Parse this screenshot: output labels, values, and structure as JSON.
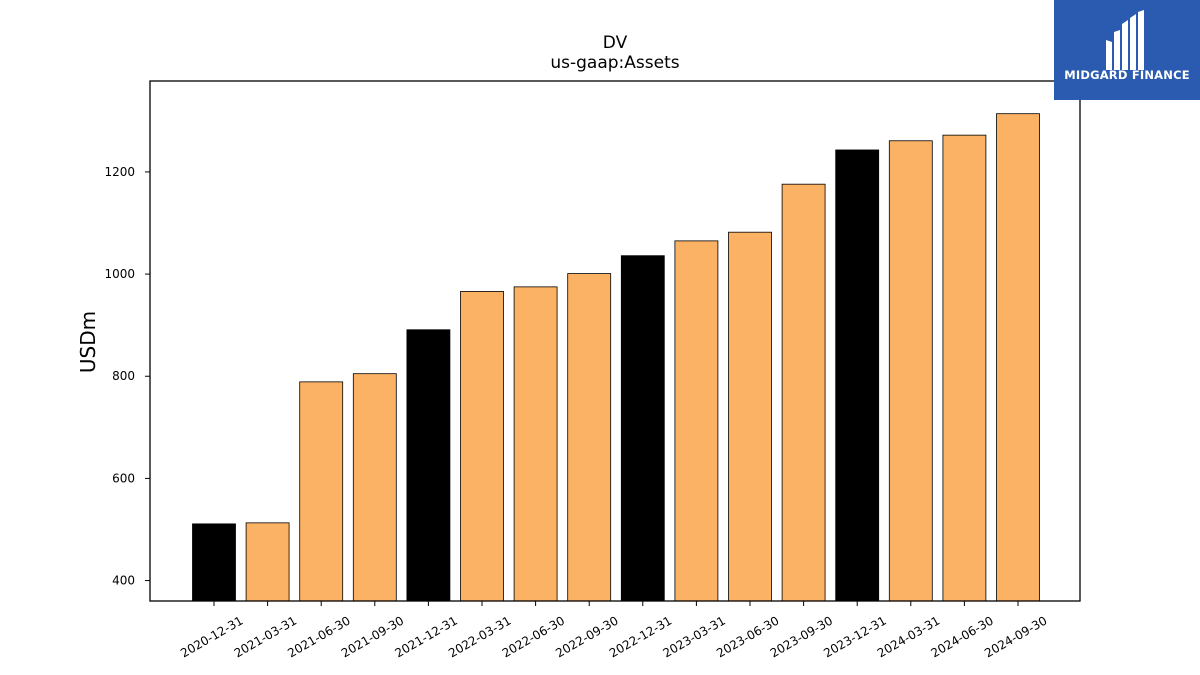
{
  "logo": {
    "text": "MIDGARD FINANCE",
    "icon": "midgard-m-logo-icon",
    "background": "#2a5bb0"
  },
  "chart_data": {
    "type": "bar",
    "title": "DV",
    "subtitle": "us-gaap:Assets",
    "xlabel": "",
    "ylabel": "USDm",
    "ylim": [
      360,
      1378
    ],
    "yticks": [
      400,
      600,
      800,
      1000,
      1200
    ],
    "grid": false,
    "categories": [
      "2020-12-31",
      "2021-03-31",
      "2021-06-30",
      "2021-09-30",
      "2021-12-31",
      "2022-03-31",
      "2022-06-30",
      "2022-09-30",
      "2022-12-31",
      "2023-03-31",
      "2023-06-30",
      "2023-09-30",
      "2023-12-31",
      "2024-03-31",
      "2024-06-30",
      "2024-09-30"
    ],
    "values": [
      511,
      513,
      789,
      805,
      891,
      966,
      975,
      1001,
      1036,
      1065,
      1082,
      1176,
      1243,
      1261,
      1272,
      1314
    ],
    "bar_colors": [
      "#000000",
      "#fbb265",
      "#fbb265",
      "#fbb265",
      "#000000",
      "#fbb265",
      "#fbb265",
      "#fbb265",
      "#000000",
      "#fbb265",
      "#fbb265",
      "#fbb265",
      "#000000",
      "#fbb265",
      "#fbb265",
      "#fbb265"
    ],
    "colors": {
      "annual": "#000000",
      "quarterly": "#fbb265"
    }
  }
}
